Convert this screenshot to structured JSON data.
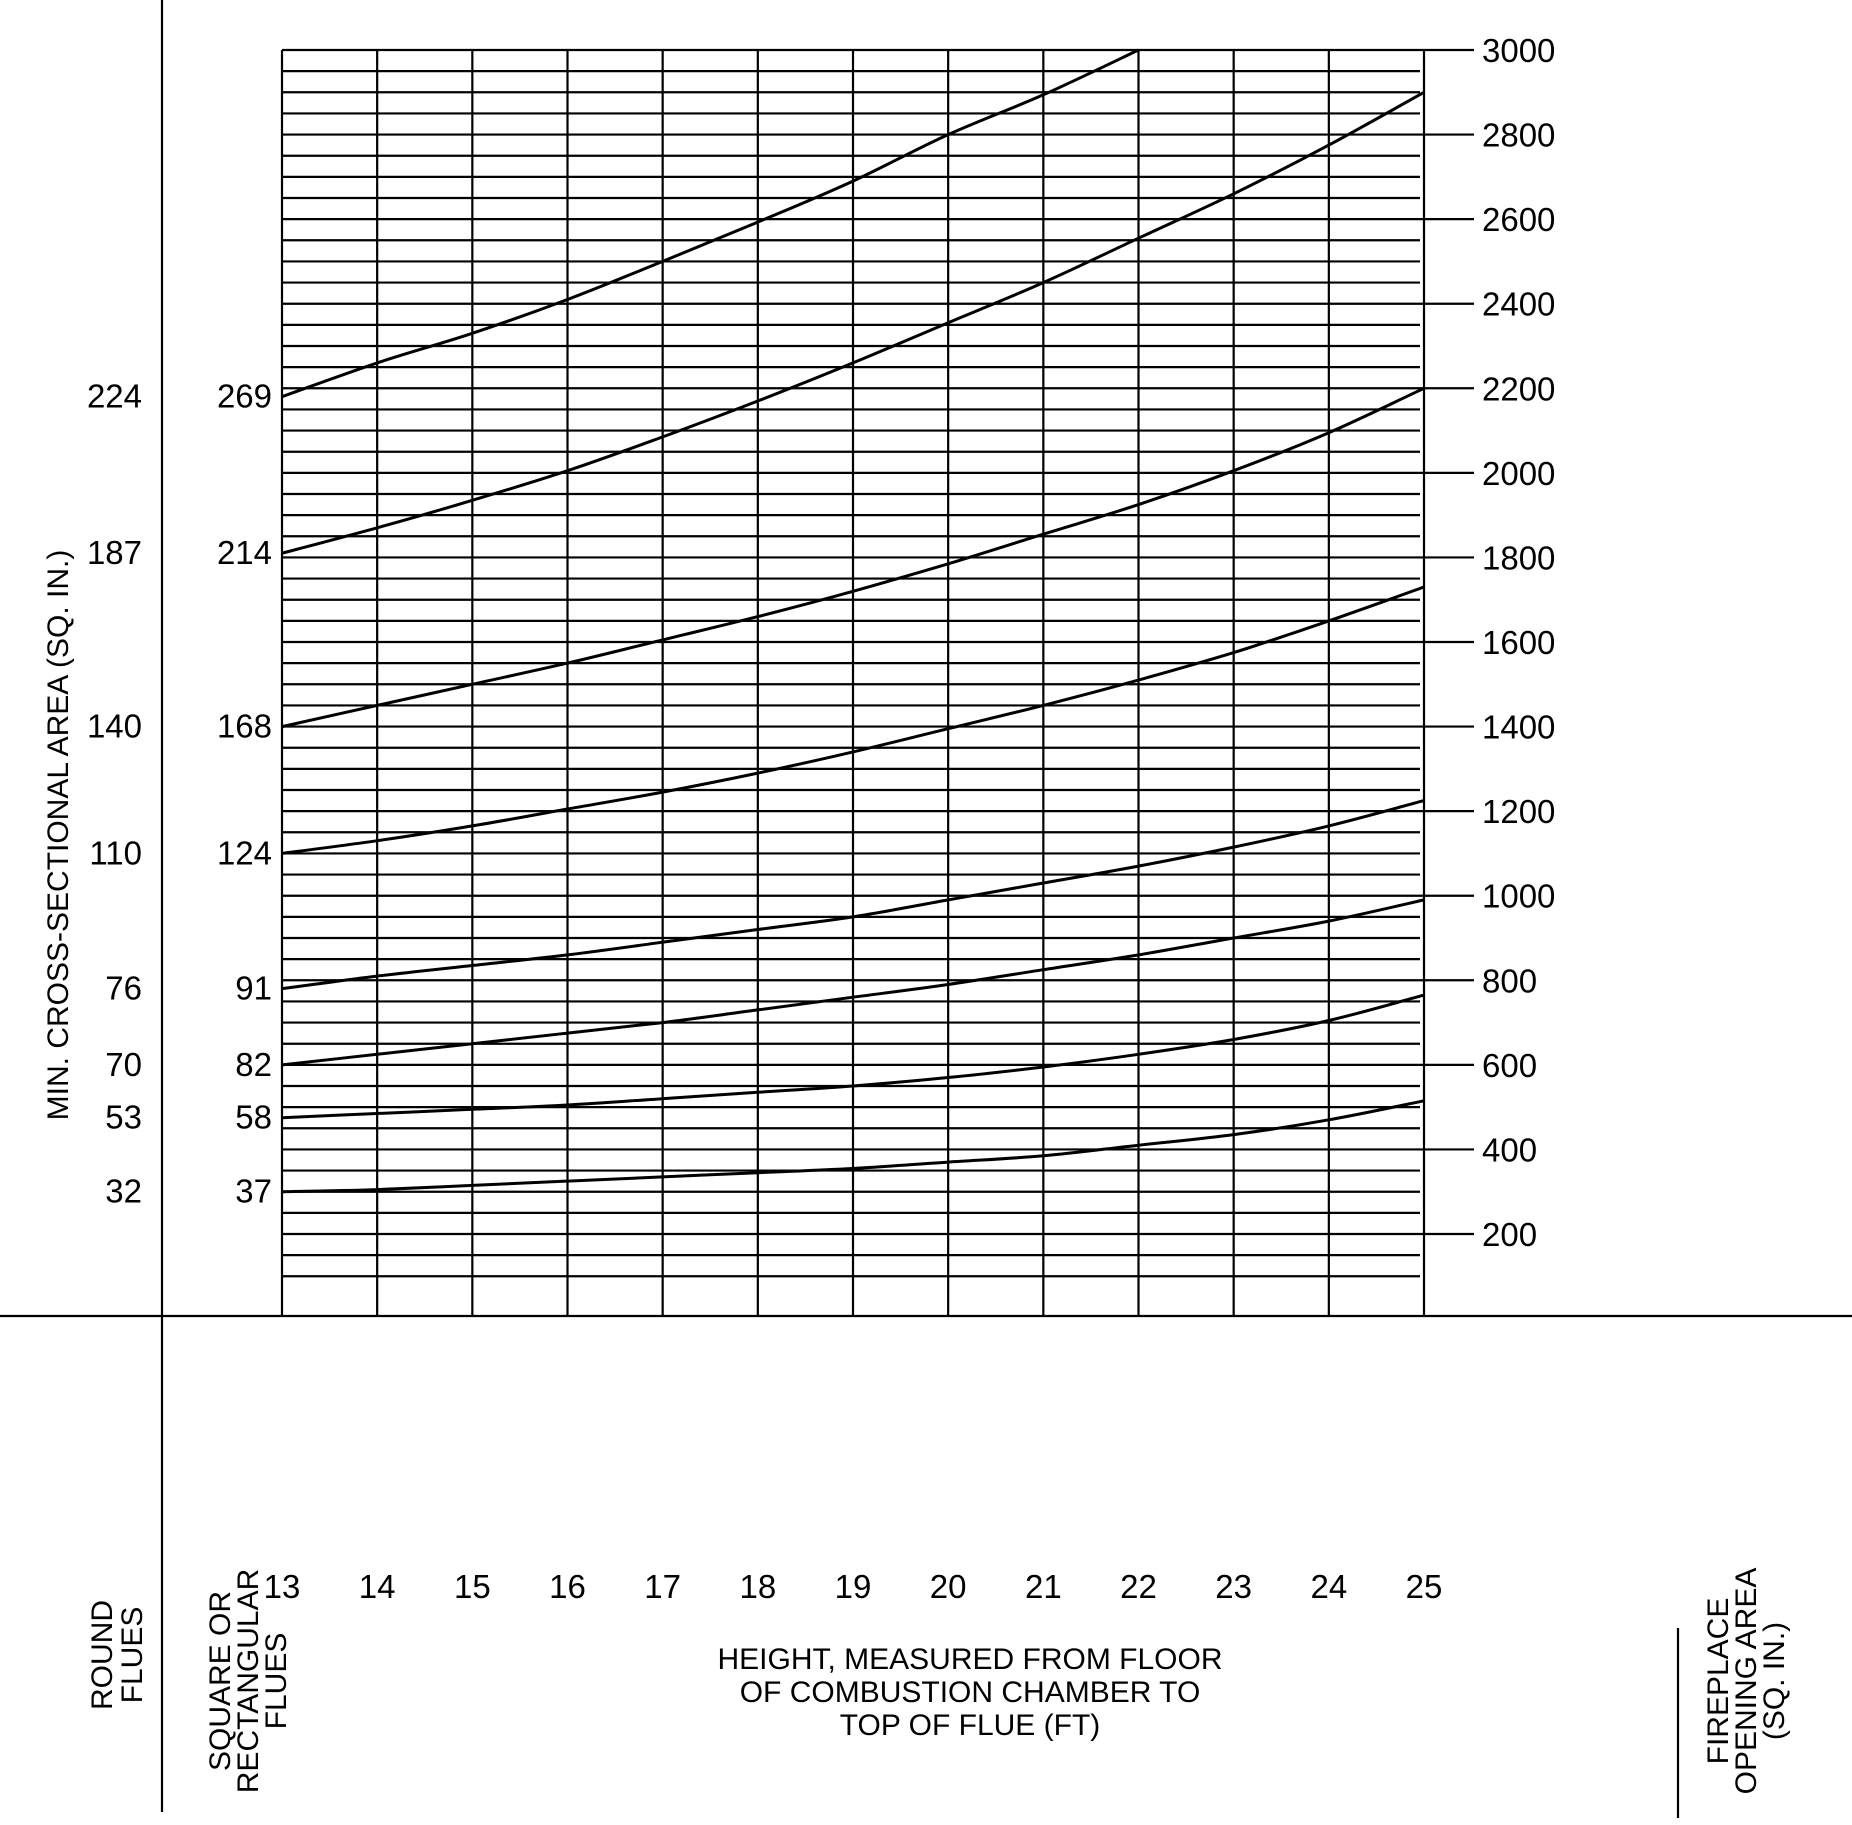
{
  "chart_data": {
    "type": "line",
    "title": "",
    "xlabel": "HEIGHT, MEASURED FROM FLOOR OF COMBUSTION CHAMBER TO TOP OF FLUE (FT)",
    "xlabel_lines": [
      "HEIGHT, MEASURED FROM FLOOR",
      "OF COMBUSTION CHAMBER TO",
      "TOP OF FLUE (FT)"
    ],
    "ylabel": "MIN. CROSS-SECTIONAL AREA (SQ. IN.)",
    "ylabel_right": "FIREPLACE OPENING AREA (SQ. IN.)",
    "ylabel_right_lines": [
      "FIREPLACE",
      "OPENING AREA",
      "(SQ. IN.)"
    ],
    "round_flues_label_lines": [
      "ROUND",
      "FLUES"
    ],
    "square_flues_label_lines": [
      "SQUARE OR",
      "RECTANGULAR",
      "FLUES"
    ],
    "x": [
      13,
      14,
      15,
      16,
      17,
      18,
      19,
      20,
      21,
      22,
      23,
      24,
      25
    ],
    "x_ticks": [
      "13",
      "14",
      "15",
      "16",
      "17",
      "18",
      "19",
      "20",
      "21",
      "22",
      "23",
      "24",
      "25"
    ],
    "xlim": [
      13,
      25
    ],
    "ylim": [
      0,
      3000
    ],
    "y_right_ticks": [
      200,
      400,
      600,
      800,
      1000,
      1200,
      1400,
      1600,
      1800,
      2000,
      2200,
      2400,
      2600,
      2800,
      3000
    ],
    "grid": true,
    "grid_minor_step": 50,
    "grid_major_step": 100,
    "legend_position": "left axis labels (round / square flue sizes)",
    "series": [
      {
        "name": "Round 224 / Square 269",
        "round": "224",
        "square": "269",
        "values": [
          2180,
          2260,
          2330,
          2410,
          2500,
          2593,
          2690,
          2800,
          2894,
          3000,
          null,
          null,
          null
        ]
      },
      {
        "name": "Round 187 / Square 214",
        "round": "187",
        "square": "214",
        "values": [
          1810,
          1870,
          1935,
          2005,
          2085,
          2170,
          2260,
          2355,
          2450,
          2555,
          2660,
          2775,
          2900
        ]
      },
      {
        "name": "Round 140 / Square 168",
        "round": "140",
        "square": "168",
        "values": [
          1400,
          1450,
          1500,
          1550,
          1605,
          1660,
          1720,
          1785,
          1855,
          1925,
          2005,
          2095,
          2200
        ]
      },
      {
        "name": "Round 110 / Square 124",
        "round": "110",
        "square": "124",
        "values": [
          1100,
          1130,
          1165,
          1205,
          1245,
          1290,
          1340,
          1395,
          1450,
          1510,
          1575,
          1650,
          1730
        ]
      },
      {
        "name": "Round 76 / Square 91",
        "round": "76",
        "square": "91",
        "values": [
          780,
          810,
          835,
          860,
          890,
          920,
          950,
          990,
          1030,
          1070,
          1115,
          1165,
          1225
        ]
      },
      {
        "name": "Round 70 / Square 82",
        "round": "70",
        "square": "82",
        "values": [
          600,
          625,
          650,
          675,
          700,
          730,
          760,
          790,
          825,
          860,
          900,
          940,
          990
        ]
      },
      {
        "name": "Round 53 / Square 58",
        "round": "53",
        "square": "58",
        "values": [
          475,
          485,
          495,
          505,
          520,
          535,
          550,
          570,
          595,
          625,
          660,
          705,
          765
        ]
      },
      {
        "name": "Round 32 / Square 37",
        "round": "32",
        "square": "37",
        "values": [
          300,
          305,
          315,
          325,
          335,
          345,
          355,
          370,
          385,
          410,
          435,
          470,
          515
        ]
      }
    ]
  }
}
